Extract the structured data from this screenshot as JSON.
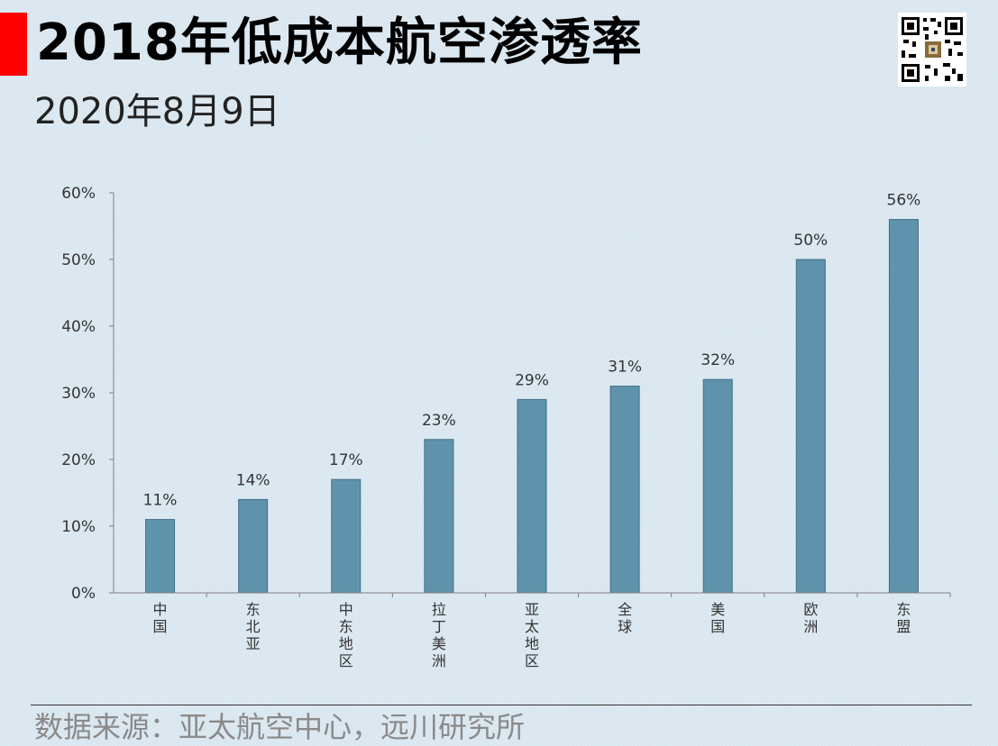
{
  "header": {
    "title": "2018年低成本航空渗透率",
    "date": "2020年8月9日"
  },
  "footer": {
    "source": "数据来源：亚太航空中心，远川研究所"
  },
  "colors": {
    "accent": "#ff0000",
    "bar": "#5f93ab",
    "bar_border": "#3f6f86",
    "background": "#d9e6ef"
  },
  "chart_data": {
    "type": "bar",
    "categories": [
      "中国",
      "东北亚",
      "中东地区",
      "拉丁美洲",
      "亚太地区",
      "全球",
      "美国",
      "欧洲",
      "东盟"
    ],
    "values": [
      11,
      14,
      17,
      23,
      29,
      31,
      32,
      50,
      56
    ],
    "data_labels": [
      "11%",
      "14%",
      "17%",
      "23%",
      "29%",
      "31%",
      "32%",
      "50%",
      "56%"
    ],
    "y_ticks": [
      "0%",
      "10%",
      "20%",
      "30%",
      "40%",
      "50%",
      "60%"
    ],
    "ylim": [
      0,
      60
    ],
    "grid": false,
    "legend": "none"
  }
}
